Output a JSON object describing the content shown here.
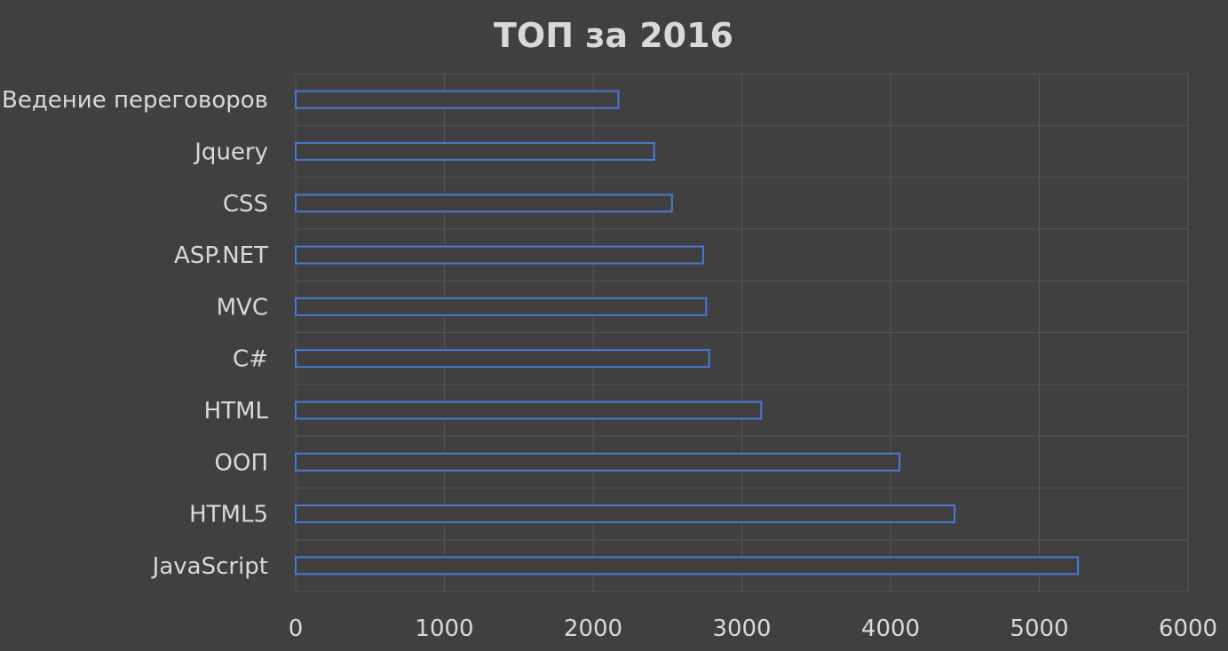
{
  "chart_data": {
    "type": "bar",
    "orientation": "horizontal",
    "title": "ТОП за 2016",
    "categories": [
      "Ведение переговоров",
      "Jquery",
      "CSS",
      "ASP.NET",
      "MVC",
      "C#",
      "HTML",
      "ООП",
      "HTML5",
      "JavaScript"
    ],
    "values": [
      2170,
      2410,
      2530,
      2740,
      2760,
      2780,
      3130,
      4060,
      4430,
      5260
    ],
    "xlim": [
      0,
      6000
    ],
    "xticks": [
      "0",
      "1000",
      "2000",
      "3000",
      "4000",
      "5000",
      "6000"
    ],
    "xlabel": "",
    "ylabel": "",
    "grid": true,
    "legend": "none",
    "colors": {
      "background": "#404040",
      "bar_outline": "#4a78d8",
      "bar_fill": "#3f3f3f",
      "grid": "#555555",
      "text": "#d9d9d9"
    }
  }
}
